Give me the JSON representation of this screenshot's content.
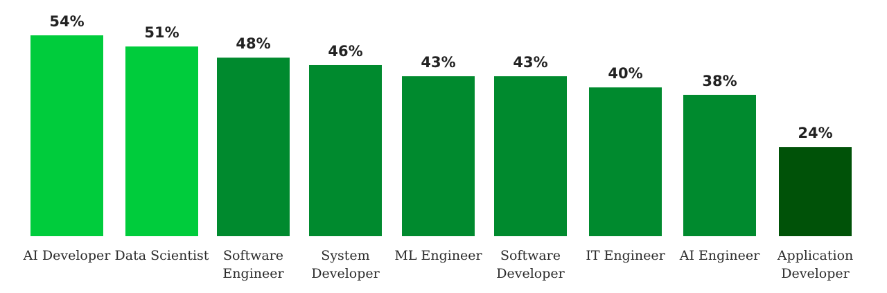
{
  "chart_data": {
    "type": "bar",
    "title": "",
    "xlabel": "",
    "ylabel": "",
    "ylim": [
      0,
      54
    ],
    "grid": false,
    "legend": "none",
    "categories": [
      [
        "AI Developer"
      ],
      [
        "Data Scientist"
      ],
      [
        "Software",
        "Engineer"
      ],
      [
        "System",
        "Developer"
      ],
      [
        "ML Engineer"
      ],
      [
        "Software",
        "Developer"
      ],
      [
        "IT Engineer"
      ],
      [
        "AI Engineer"
      ],
      [
        "Application",
        "Developer"
      ]
    ],
    "values": [
      54,
      51,
      48,
      46,
      43,
      43,
      40,
      38,
      24
    ],
    "value_labels": [
      "54%",
      "51%",
      "48%",
      "46%",
      "43%",
      "43%",
      "40%",
      "38%",
      "24%"
    ],
    "bar_colors": [
      "#00cc3c",
      "#00cc3c",
      "#008a2e",
      "#008a2e",
      "#008a2e",
      "#008a2e",
      "#008a2e",
      "#008a2e",
      "#005208"
    ]
  }
}
